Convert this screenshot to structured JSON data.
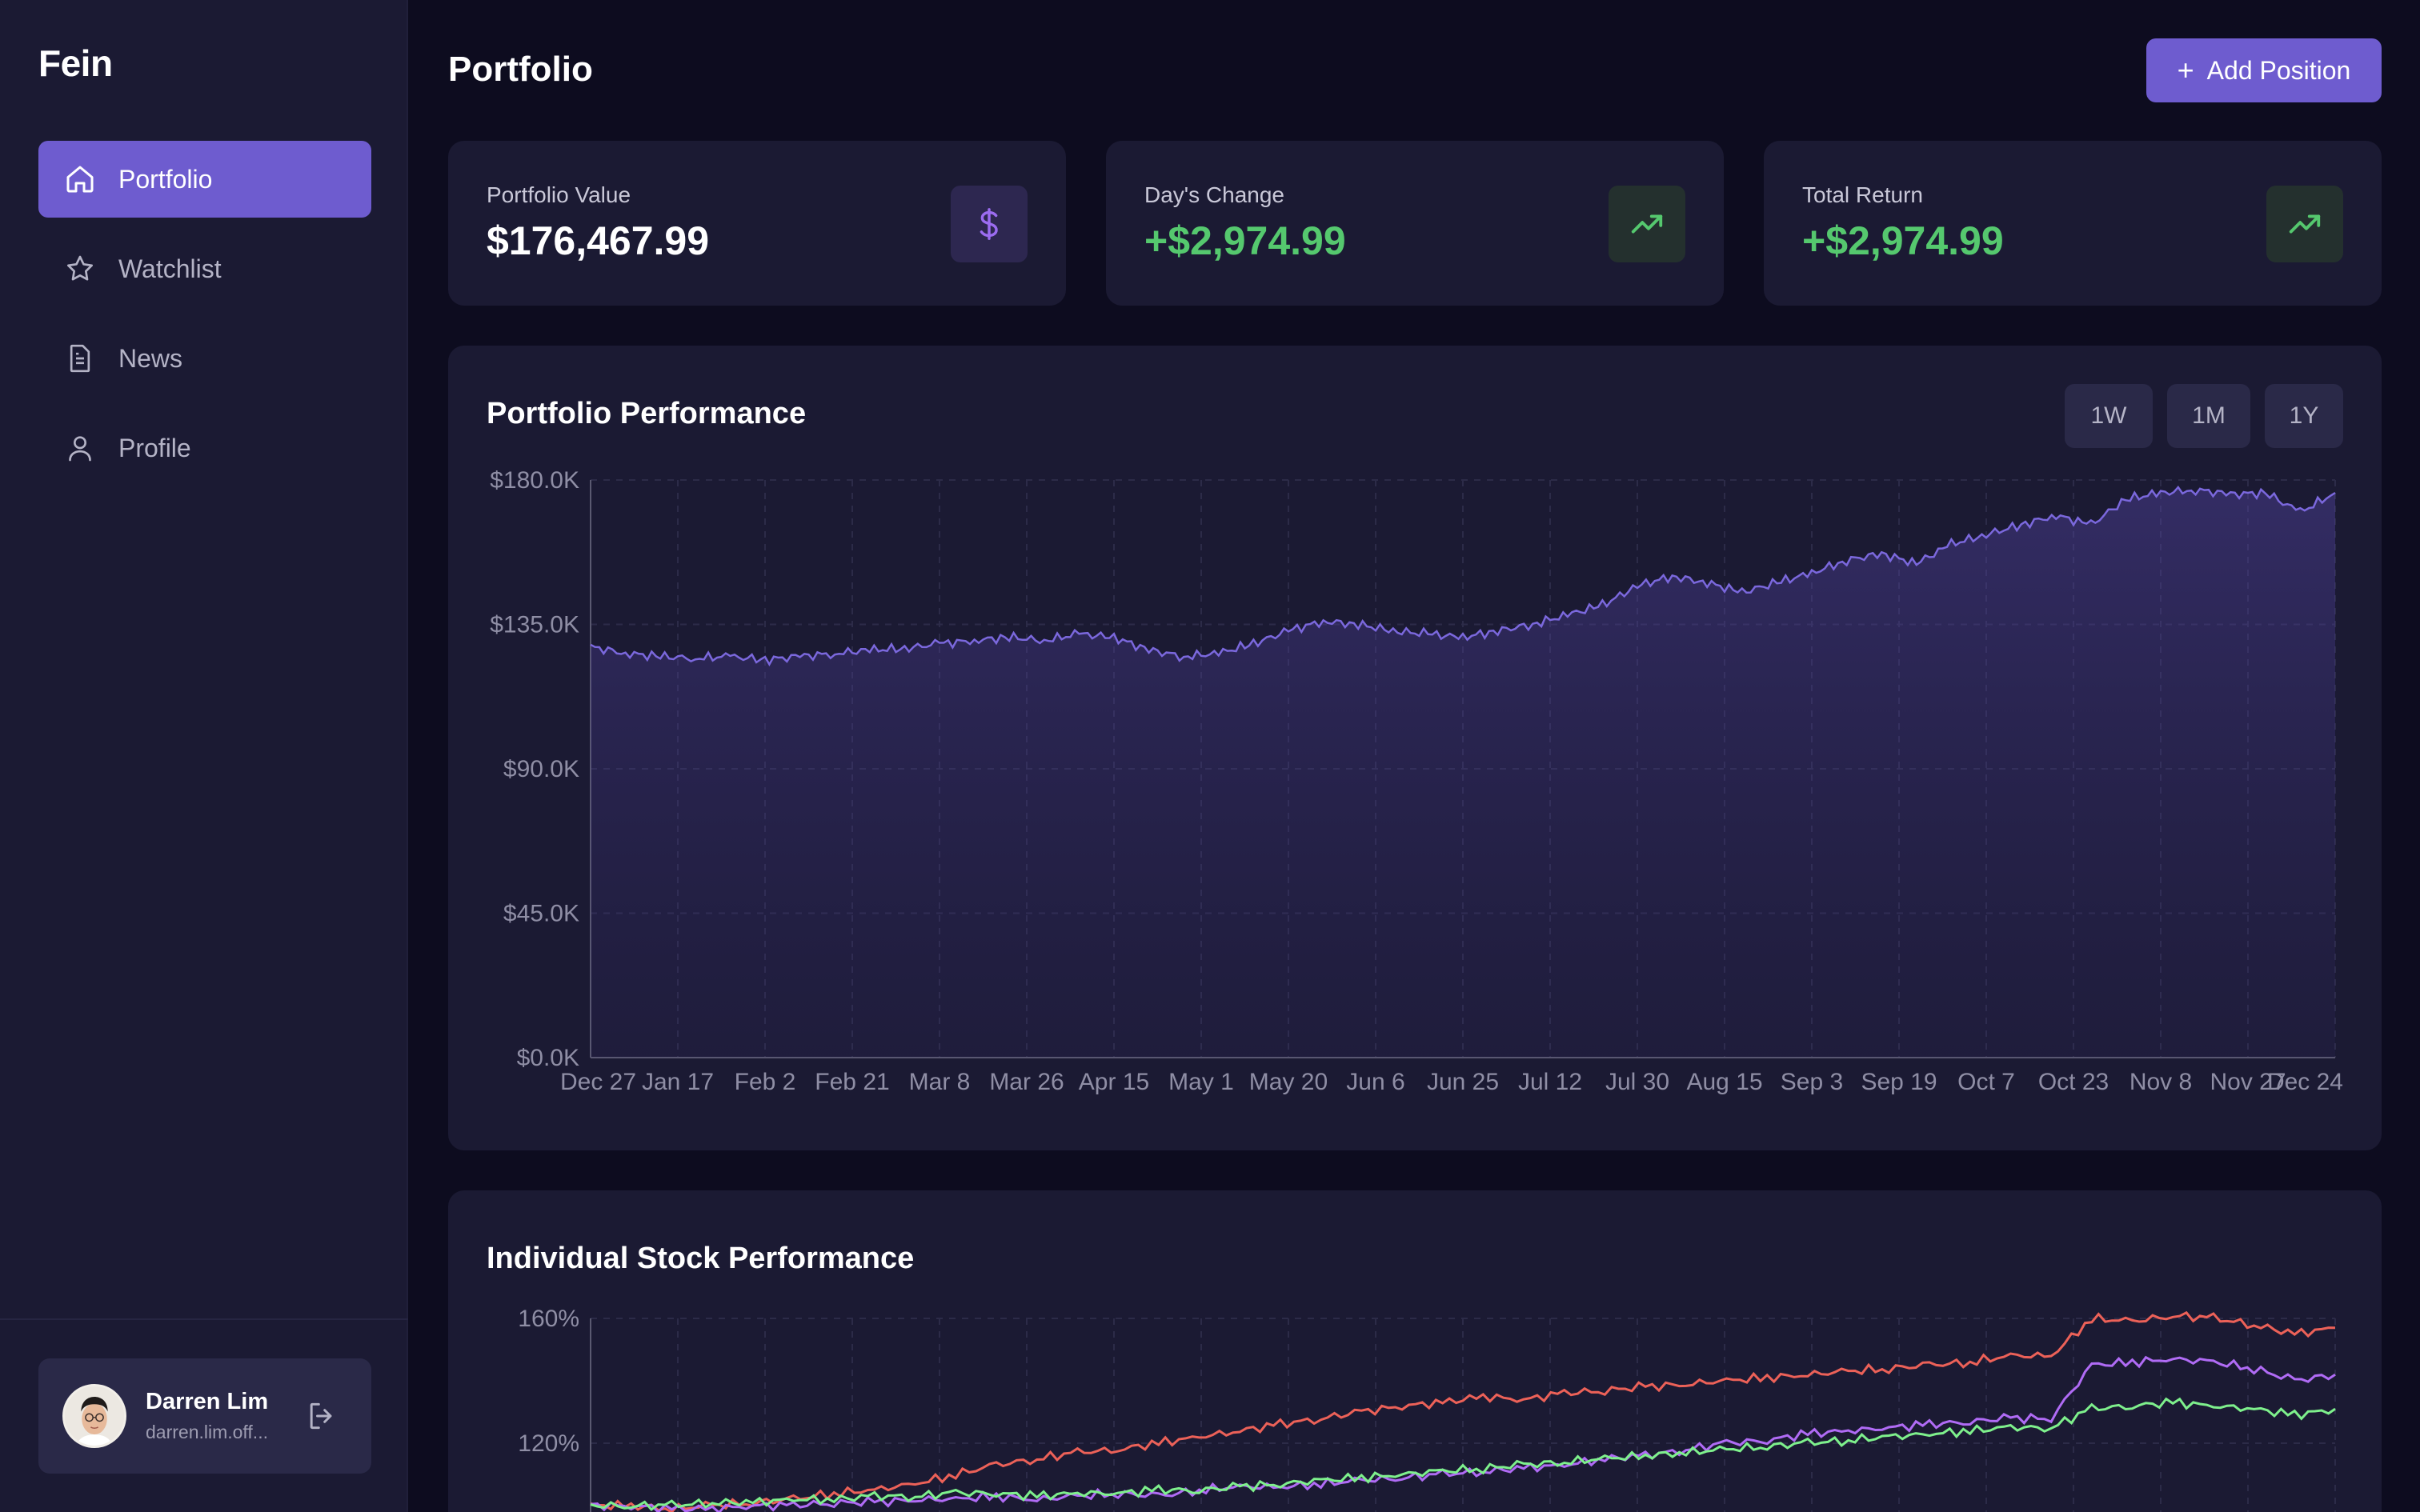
{
  "app": {
    "brand": "Fein"
  },
  "sidebar": {
    "items": [
      {
        "label": "Portfolio",
        "icon": "home-icon",
        "active": true
      },
      {
        "label": "Watchlist",
        "icon": "star-icon",
        "active": false
      },
      {
        "label": "News",
        "icon": "document-icon",
        "active": false
      },
      {
        "label": "Profile",
        "icon": "user-icon",
        "active": false
      }
    ],
    "user": {
      "name": "Darren Lim",
      "email": "darren.lim.off..."
    }
  },
  "header": {
    "title": "Portfolio",
    "add_button": "Add Position"
  },
  "stats": [
    {
      "label": "Portfolio Value",
      "value": "$176,467.99",
      "icon": "dollar-icon"
    },
    {
      "label": "Day's Change",
      "value": "+$2,974.99",
      "icon": "trending-up-icon"
    },
    {
      "label": "Total Return",
      "value": "+$2,974.99",
      "icon": "trending-up-icon"
    }
  ],
  "colors": {
    "accent": "#6e5ccf",
    "positive": "#55c86e",
    "background": "#0d0c1f",
    "card": "#1b1a33"
  },
  "performance": {
    "title": "Portfolio Performance",
    "ranges": [
      "1W",
      "1M",
      "1Y"
    ]
  },
  "individual": {
    "title": "Individual Stock Performance"
  },
  "chart_data": [
    {
      "type": "area",
      "title": "Portfolio Performance",
      "ylim": [
        0,
        180000
      ],
      "y_ticks": [
        "$180.0K",
        "$135.0K",
        "$90.0K",
        "$45.0K",
        "$0.0K"
      ],
      "x_ticks": [
        "Dec 27",
        "Jan 17",
        "Feb 2",
        "Feb 21",
        "Mar 8",
        "Mar 26",
        "Apr 15",
        "May 1",
        "May 20",
        "Jun 6",
        "Jun 25",
        "Jul 12",
        "Jul 30",
        "Aug 15",
        "Sep 3",
        "Sep 19",
        "Oct 7",
        "Oct 23",
        "Nov 8",
        "Nov 27",
        "Dec 24"
      ],
      "grid": true,
      "series": [
        {
          "color": "#7b68dd",
          "values": [
            128000,
            126000,
            125000,
            124500,
            125000,
            124000,
            125000,
            126000,
            127000,
            127500,
            129000,
            130000,
            131000,
            130000,
            132000,
            131000,
            127000,
            125000,
            126000,
            129000,
            133000,
            136000,
            135000,
            133000,
            132000,
            131000,
            133000,
            135000,
            138000,
            141000,
            147000,
            150000,
            148000,
            145000,
            148000,
            151000,
            155000,
            157000,
            154000,
            160000,
            163000,
            166000,
            169000,
            166000,
            174000,
            176000,
            177000,
            175500,
            176000,
            170000,
            176000
          ]
        }
      ]
    },
    {
      "type": "line",
      "title": "Individual Stock Performance",
      "y_ticks": [
        "160%",
        "120%"
      ],
      "series": [
        {
          "color": "#ec6158",
          "values": [
            100,
            100,
            99,
            100,
            101,
            102,
            104,
            105,
            107,
            110,
            113,
            115,
            117,
            118,
            120,
            122,
            124,
            126,
            128,
            130,
            132,
            133,
            135,
            134,
            136,
            137,
            138,
            139,
            140,
            141,
            142,
            143,
            144,
            145,
            146,
            148,
            148,
            160,
            159,
            161,
            160,
            158,
            155,
            157
          ]
        },
        {
          "color": "#b06bf5",
          "values": [
            100,
            100,
            99,
            99,
            100,
            100,
            101,
            101,
            102,
            102,
            103,
            102,
            103,
            104,
            103,
            105,
            106,
            106,
            107,
            108,
            109,
            110,
            111,
            112,
            113,
            115,
            116,
            118,
            120,
            121,
            123,
            124,
            125,
            126,
            127,
            128,
            128,
            145,
            146,
            147,
            146,
            144,
            140,
            142
          ]
        },
        {
          "color": "#7ef08c",
          "values": [
            100,
            100,
            100,
            101,
            101,
            102,
            102,
            103,
            103,
            104,
            104,
            103,
            104,
            104,
            105,
            105,
            106,
            107,
            108,
            109,
            110,
            111,
            112,
            113,
            114,
            115,
            116,
            117,
            118,
            119,
            120,
            121,
            122,
            123,
            124,
            125,
            125,
            131,
            132,
            133,
            132,
            131,
            129,
            131
          ]
        }
      ]
    }
  ]
}
